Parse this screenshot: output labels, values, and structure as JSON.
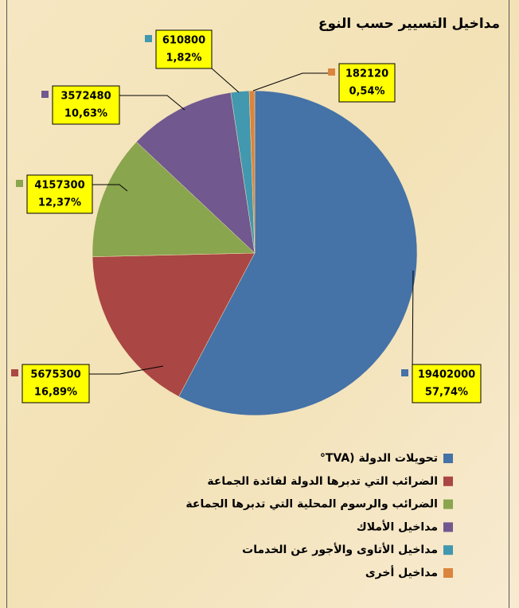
{
  "chart_data": {
    "type": "pie",
    "title": "مداخيل التسيير حسب النوع",
    "categories": [
      "تحويلات الدولة (TVA°",
      "الضرائب التي تدبرها الدولة لفائدة الجماعة",
      "الضرائب والرسوم المحلية التي تدبرها الجماعة",
      "مداخيل الأملاك",
      "مداخيل الأتاوى والأجور عن الخدمات",
      "مداخيل أخرى"
    ],
    "values": [
      19402000,
      5675300,
      4157300,
      3572480,
      610800,
      182120
    ],
    "percentages": [
      57.74,
      16.89,
      12.37,
      10.63,
      1.82,
      0.54
    ],
    "percentage_labels": [
      "57,74%",
      "16,89%",
      "12,37%",
      "10,63%",
      "1,82%",
      "0,54%"
    ],
    "colors": [
      "#4572a7",
      "#aa4643",
      "#89a54e",
      "#71588f",
      "#4198af",
      "#db843d"
    ],
    "legend": "bottom"
  }
}
